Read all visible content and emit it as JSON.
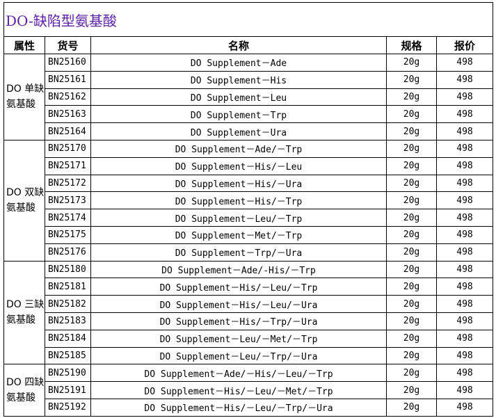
{
  "title": "DO-缺陷型氨基酸",
  "headers": [
    "属性",
    "货号",
    "名称",
    "规格",
    "报价"
  ],
  "groups": [
    {
      "label": "DO 单缺\n氨基酸",
      "rows": [
        [
          "BN25160",
          "DO Supplement－Ade",
          "20g",
          "498"
        ],
        [
          "BN25161",
          "DO Supplement－His",
          "20g",
          "498"
        ],
        [
          "BN25162",
          "DO Supplement－Leu",
          "20g",
          "498"
        ],
        [
          "BN25163",
          "DO Supplement－Trp",
          "20g",
          "498"
        ],
        [
          "BN25164",
          "DO Supplement－Ura",
          "20g",
          "498"
        ]
      ]
    },
    {
      "label": "DO 双缺\n氨基酸",
      "rows": [
        [
          "BN25170",
          "DO Supplement－Ade/－Trp",
          "20g",
          "498"
        ],
        [
          "BN25171",
          "DO Supplement－His/－Leu",
          "20g",
          "498"
        ],
        [
          "BN25172",
          "DO Supplement－His/－Ura",
          "20g",
          "498"
        ],
        [
          "BN25173",
          "DO Supplement－His/－Trp",
          "20g",
          "498"
        ],
        [
          "BN25174",
          "DO Supplement－Leu/－Trp",
          "20g",
          "498"
        ],
        [
          "BN25175",
          "DO Supplement－Met/－Trp",
          "20g",
          "498"
        ],
        [
          "BN25176",
          "DO Supplement－Trp/－Ura",
          "20g",
          "498"
        ]
      ]
    },
    {
      "label": "DO 三缺\n氨基酸",
      "rows": [
        [
          "BN25180",
          "DO Supplement－Ade/-His/－Trp",
          "20g",
          "498"
        ],
        [
          "BN25181",
          "DO Supplement－His/－Leu/－Trp",
          "20g",
          "498"
        ],
        [
          "BN25182",
          "DO Supplement－His/－Leu/－Ura",
          "20g",
          "498"
        ],
        [
          "BN25183",
          "DO Supplement－His/－Trp/－Ura",
          "20g",
          "498"
        ],
        [
          "BN25184",
          "DO Supplement－Leu/－Met/－Trp",
          "20g",
          "498"
        ],
        [
          "BN25185",
          "DO Supplement－Leu/－Trp/－Ura",
          "20g",
          "498"
        ]
      ]
    },
    {
      "label": "DO 四缺\n氨基酸",
      "rows": [
        [
          "BN25190",
          "DO Supplement－Ade/－His/－Leu/－Trp",
          "20g",
          "498"
        ],
        [
          "BN25191",
          "DO Supplement－His/－Leu/－Met/－Trp",
          "20g",
          "498"
        ],
        [
          "BN25192",
          "DO Supplement－His/－Leu/－Trp/－Ura",
          "20g",
          "498"
        ]
      ]
    }
  ]
}
